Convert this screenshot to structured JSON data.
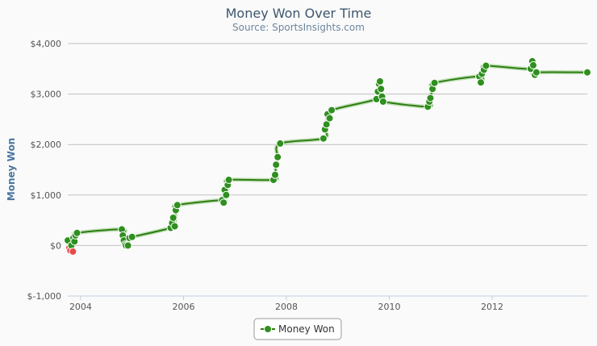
{
  "chart_data": {
    "type": "line",
    "title": "Money Won Over Time",
    "subtitle": "Source: SportsInsights.com",
    "xlabel": "",
    "ylabel": "Money Won",
    "xlim": [
      2003.75,
      2013.85
    ],
    "ylim": [
      -1000,
      4000
    ],
    "x_ticks": [
      2004,
      2006,
      2008,
      2010,
      2012
    ],
    "x_tick_labels": [
      "2004",
      "2006",
      "2008",
      "2010",
      "2012"
    ],
    "y_ticks": [
      -1000,
      0,
      1000,
      2000,
      3000,
      4000
    ],
    "y_tick_labels": [
      "$-1,000",
      "$0",
      "$1,000",
      "$2,000",
      "$3,000",
      "$4,000"
    ],
    "grid": "horizontal",
    "legend_position": "bottom-center",
    "colors": {
      "line": "#2d7d12",
      "positive_point": "#2f8f1f",
      "negative_point": "#e84a4a",
      "grid": "#c0c0c0"
    },
    "series": [
      {
        "name": "Money Won",
        "points": [
          {
            "x": 2003.75,
            "y": 100
          },
          {
            "x": 2003.78,
            "y": -50
          },
          {
            "x": 2003.8,
            "y": -100
          },
          {
            "x": 2003.82,
            "y": 0
          },
          {
            "x": 2003.85,
            "y": -120
          },
          {
            "x": 2003.86,
            "y": 150
          },
          {
            "x": 2003.88,
            "y": 80
          },
          {
            "x": 2003.9,
            "y": 200
          },
          {
            "x": 2003.93,
            "y": 250
          },
          {
            "x": 2004.8,
            "y": 320
          },
          {
            "x": 2004.82,
            "y": 200
          },
          {
            "x": 2004.84,
            "y": 100
          },
          {
            "x": 2004.86,
            "y": 20
          },
          {
            "x": 2004.88,
            "y": 0
          },
          {
            "x": 2004.92,
            "y": 0
          },
          {
            "x": 2004.95,
            "y": 150
          },
          {
            "x": 2005.0,
            "y": 170
          },
          {
            "x": 2005.75,
            "y": 350
          },
          {
            "x": 2005.78,
            "y": 450
          },
          {
            "x": 2005.8,
            "y": 550
          },
          {
            "x": 2005.83,
            "y": 380
          },
          {
            "x": 2005.85,
            "y": 700
          },
          {
            "x": 2005.88,
            "y": 800
          },
          {
            "x": 2006.75,
            "y": 900
          },
          {
            "x": 2006.78,
            "y": 850
          },
          {
            "x": 2006.8,
            "y": 1100
          },
          {
            "x": 2006.83,
            "y": 1000
          },
          {
            "x": 2006.86,
            "y": 1200
          },
          {
            "x": 2006.88,
            "y": 1300
          },
          {
            "x": 2007.75,
            "y": 1300
          },
          {
            "x": 2007.78,
            "y": 1400
          },
          {
            "x": 2007.8,
            "y": 1600
          },
          {
            "x": 2007.83,
            "y": 1750
          },
          {
            "x": 2007.88,
            "y": 2020
          },
          {
            "x": 2008.72,
            "y": 2120
          },
          {
            "x": 2008.75,
            "y": 2300
          },
          {
            "x": 2008.78,
            "y": 2400
          },
          {
            "x": 2008.8,
            "y": 2600
          },
          {
            "x": 2008.84,
            "y": 2520
          },
          {
            "x": 2008.88,
            "y": 2680
          },
          {
            "x": 2009.75,
            "y": 2900
          },
          {
            "x": 2009.78,
            "y": 3050
          },
          {
            "x": 2009.8,
            "y": 3200
          },
          {
            "x": 2009.82,
            "y": 3250
          },
          {
            "x": 2009.84,
            "y": 3100
          },
          {
            "x": 2009.86,
            "y": 2950
          },
          {
            "x": 2009.88,
            "y": 2850
          },
          {
            "x": 2010.75,
            "y": 2750
          },
          {
            "x": 2010.78,
            "y": 2850
          },
          {
            "x": 2010.8,
            "y": 2920
          },
          {
            "x": 2010.84,
            "y": 3100
          },
          {
            "x": 2010.88,
            "y": 3220
          },
          {
            "x": 2011.75,
            "y": 3350
          },
          {
            "x": 2011.78,
            "y": 3230
          },
          {
            "x": 2011.8,
            "y": 3400
          },
          {
            "x": 2011.84,
            "y": 3480
          },
          {
            "x": 2011.88,
            "y": 3560
          },
          {
            "x": 2012.75,
            "y": 3500
          },
          {
            "x": 2012.78,
            "y": 3650
          },
          {
            "x": 2012.8,
            "y": 3570
          },
          {
            "x": 2012.83,
            "y": 3380
          },
          {
            "x": 2012.86,
            "y": 3430
          },
          {
            "x": 2013.85,
            "y": 3430
          }
        ]
      }
    ]
  }
}
